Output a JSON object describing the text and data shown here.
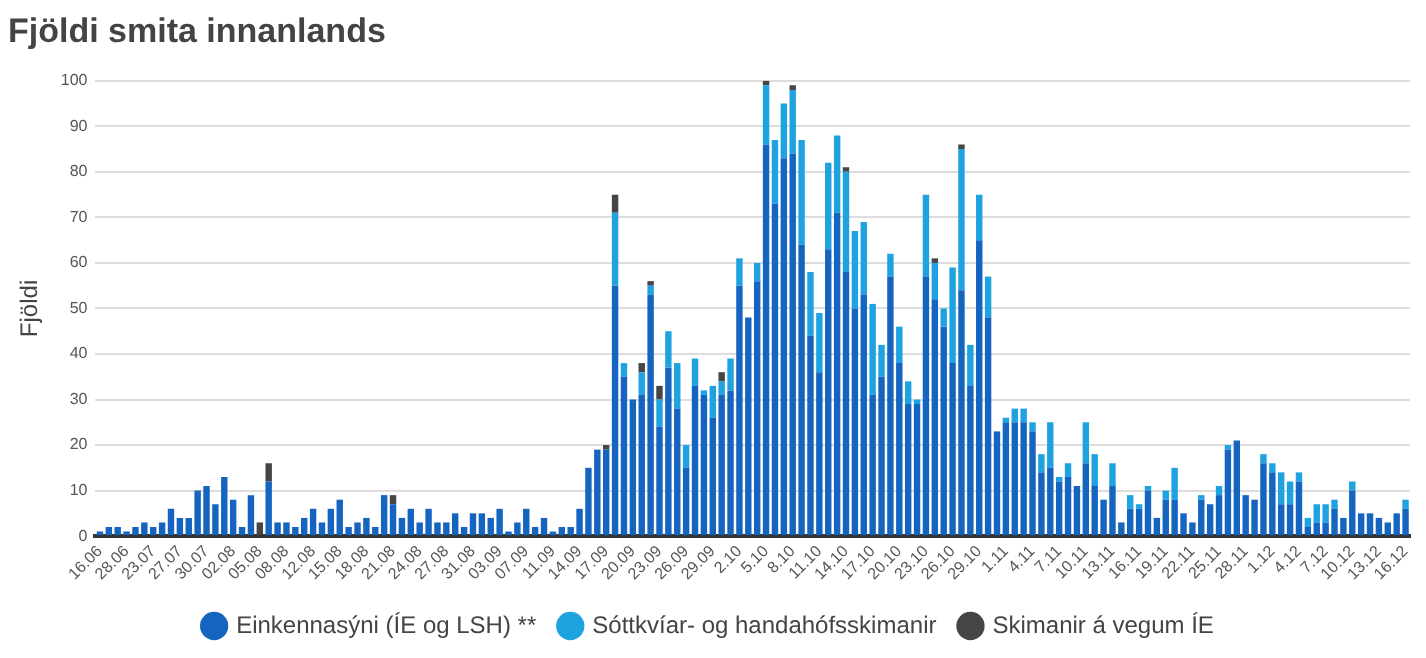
{
  "chart_data": {
    "type": "bar",
    "title": "Fjöldi smita innanlands",
    "ylabel": "Fjöldi",
    "categories": [
      "16.06",
      null,
      null,
      "28.06",
      null,
      null,
      "23.07",
      null,
      null,
      "27.07",
      null,
      null,
      "30.07",
      null,
      null,
      "02.08",
      null,
      null,
      "05.08",
      null,
      null,
      "08.08",
      null,
      null,
      "12.08",
      null,
      null,
      "15.08",
      null,
      null,
      "18.08",
      null,
      null,
      "21.08",
      null,
      null,
      "24.08",
      null,
      null,
      "27.08",
      null,
      null,
      "31.08",
      null,
      null,
      "03.09",
      null,
      null,
      "07.09",
      null,
      null,
      "11.09",
      null,
      null,
      "14.09",
      null,
      null,
      "17.09",
      null,
      null,
      "20.09",
      null,
      null,
      "23.09",
      null,
      null,
      "26.09",
      null,
      null,
      "29.09",
      null,
      null,
      "2.10",
      null,
      null,
      "5.10",
      null,
      null,
      "8.10",
      null,
      null,
      "11.10",
      null,
      null,
      "14.10",
      null,
      null,
      "17.10",
      null,
      null,
      "20.10",
      null,
      null,
      "23.10",
      null,
      null,
      "26.10",
      null,
      null,
      "29.10",
      null,
      null,
      "1.11",
      null,
      null,
      "4.11",
      null,
      null,
      "7.11",
      null,
      null,
      "10.11",
      null,
      null,
      "13.11",
      null,
      null,
      "16.11",
      null,
      null,
      "19.11",
      null,
      null,
      "22.11",
      null,
      null,
      "25.11",
      null,
      null,
      "28.11",
      null,
      null,
      "1.12",
      null,
      null,
      "4.12",
      null,
      null,
      "7.12",
      null,
      null,
      "10.12",
      null,
      null,
      "13.12",
      null,
      null,
      "16.12"
    ],
    "series": [
      {
        "name": "Einkennasýni (ÍE og LSH) **",
        "color": "#1565c0",
        "values": [
          1,
          2,
          2,
          1,
          2,
          3,
          2,
          3,
          6,
          4,
          4,
          10,
          11,
          7,
          13,
          8,
          2,
          9,
          0,
          12,
          3,
          3,
          2,
          4,
          6,
          3,
          6,
          8,
          2,
          3,
          4,
          2,
          9,
          7,
          4,
          6,
          3,
          6,
          3,
          3,
          5,
          2,
          5,
          5,
          4,
          6,
          1,
          3,
          6,
          2,
          4,
          1,
          2,
          2,
          6,
          15,
          19,
          19,
          55,
          35,
          30,
          31,
          53,
          24,
          37,
          28,
          15,
          33,
          31,
          26,
          31,
          32,
          55,
          48,
          56,
          86,
          73,
          83,
          84,
          64,
          44,
          36,
          63,
          71,
          58,
          50,
          53,
          31,
          35,
          57,
          38,
          29,
          29,
          57,
          52,
          46,
          38,
          54,
          33,
          65,
          48,
          23,
          25,
          25,
          25,
          23,
          14,
          15,
          12,
          13,
          11,
          16,
          11,
          8,
          11,
          3,
          6,
          6,
          10,
          4,
          8,
          8,
          5,
          3,
          8,
          7,
          9,
          19,
          21,
          9,
          8,
          16,
          14,
          7,
          7,
          12,
          2,
          3,
          3,
          6,
          4,
          10,
          5,
          5,
          4,
          3,
          5,
          6
        ]
      },
      {
        "name": "Sóttkvíar- og handahófsskimanir",
        "color": "#1fa3e0",
        "values": [
          0,
          0,
          0,
          0,
          0,
          0,
          0,
          0,
          0,
          0,
          0,
          0,
          0,
          0,
          0,
          0,
          0,
          0,
          0,
          0,
          0,
          0,
          0,
          0,
          0,
          0,
          0,
          0,
          0,
          0,
          0,
          0,
          0,
          0,
          0,
          0,
          0,
          0,
          0,
          0,
          0,
          0,
          0,
          0,
          0,
          0,
          0,
          0,
          0,
          0,
          0,
          0,
          0,
          0,
          0,
          0,
          0,
          0,
          16,
          3,
          0,
          5,
          2,
          6,
          8,
          10,
          5,
          6,
          1,
          7,
          3,
          7,
          6,
          0,
          4,
          13,
          14,
          12,
          14,
          23,
          14,
          13,
          19,
          17,
          22,
          17,
          16,
          20,
          7,
          5,
          8,
          5,
          1,
          18,
          8,
          4,
          21,
          31,
          9,
          10,
          9,
          0,
          1,
          3,
          3,
          2,
          4,
          10,
          1,
          3,
          0,
          9,
          7,
          0,
          5,
          0,
          3,
          1,
          1,
          0,
          2,
          7,
          0,
          0,
          1,
          0,
          2,
          1,
          0,
          0,
          0,
          2,
          2,
          7,
          5,
          2,
          2,
          4,
          4,
          2,
          0,
          2,
          0,
          0,
          0,
          0,
          0,
          2
        ]
      },
      {
        "name": "Skimanir á vegum ÍE",
        "color": "#454545",
        "values": [
          0,
          0,
          0,
          0,
          0,
          0,
          0,
          0,
          0,
          0,
          0,
          0,
          0,
          0,
          0,
          0,
          0,
          0,
          3,
          4,
          0,
          0,
          0,
          0,
          0,
          0,
          0,
          0,
          0,
          0,
          0,
          0,
          0,
          2,
          0,
          0,
          0,
          0,
          0,
          0,
          0,
          0,
          0,
          0,
          0,
          0,
          0,
          0,
          0,
          0,
          0,
          0,
          0,
          0,
          0,
          0,
          0,
          1,
          4,
          0,
          0,
          2,
          1,
          3,
          0,
          0,
          0,
          0,
          0,
          0,
          2,
          0,
          0,
          0,
          0,
          1,
          0,
          0,
          1,
          0,
          0,
          0,
          0,
          0,
          1,
          0,
          0,
          0,
          0,
          0,
          0,
          0,
          0,
          0,
          1,
          0,
          0,
          1,
          0,
          0,
          0,
          0,
          0,
          0,
          0,
          0,
          0,
          0,
          0,
          0,
          0,
          0,
          0,
          0,
          0,
          0,
          0,
          0,
          0,
          0,
          0,
          0,
          0,
          0,
          0,
          0,
          0,
          0,
          0,
          0,
          0,
          0,
          0,
          0,
          0,
          0,
          0,
          0,
          0,
          0,
          0,
          0,
          0,
          0,
          0,
          0,
          0,
          0
        ]
      }
    ],
    "stacked": true,
    "ylim": [
      0,
      100
    ],
    "yticks": [
      0,
      10,
      20,
      30,
      40,
      50,
      60,
      70,
      80,
      90,
      100
    ],
    "grid": "y",
    "legend": "bottom"
  }
}
